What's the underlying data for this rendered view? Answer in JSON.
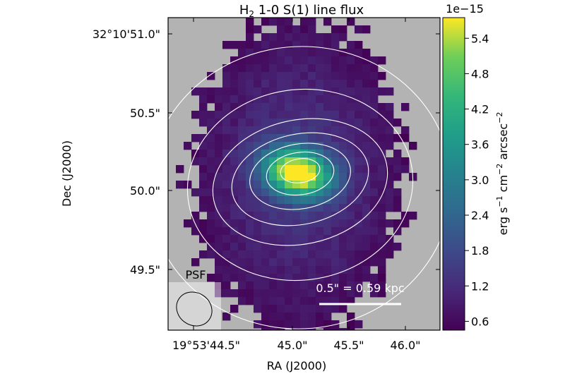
{
  "chart_data": {
    "type": "heatmap",
    "title_main": "H",
    "title_sub": "2",
    "title_rest": " 1-0 S(1) line flux",
    "xlabel": "RA (J2000)",
    "ylabel": "Dec (J2000)",
    "x_ticks": [
      "19°53'44.5\"",
      "45.0\"",
      "45.5\"",
      "46.0\""
    ],
    "y_ticks": [
      "32°10'51.0\"",
      "50.5\"",
      "50.0\"",
      "49.5\""
    ],
    "colorbar": {
      "offset_text": "1e−15",
      "label_parts": [
        "erg s",
        "−1",
        " cm",
        "−2",
        " arcsec",
        "−2"
      ],
      "range": [
        0.45,
        5.75
      ],
      "ticks": [
        0.6,
        1.2,
        1.8,
        2.4,
        3.0,
        3.6,
        4.2,
        4.8,
        5.4
      ],
      "tick_labels": [
        "0.6",
        "1.2",
        "1.8",
        "2.4",
        "3.0",
        "3.6",
        "4.2",
        "4.8",
        "5.4"
      ],
      "colormap": "viridis"
    },
    "peak": {
      "value": 5.7,
      "ra_offset_arcsec": 0.0,
      "dec_offset_arcsec": 0.0
    },
    "background_color": "#b3b3b3",
    "contour_color": "#ffffff",
    "contour_levels": 7,
    "scalebar_label": "0.5\" = 0.59 kpc",
    "psf_label": "PSF"
  }
}
